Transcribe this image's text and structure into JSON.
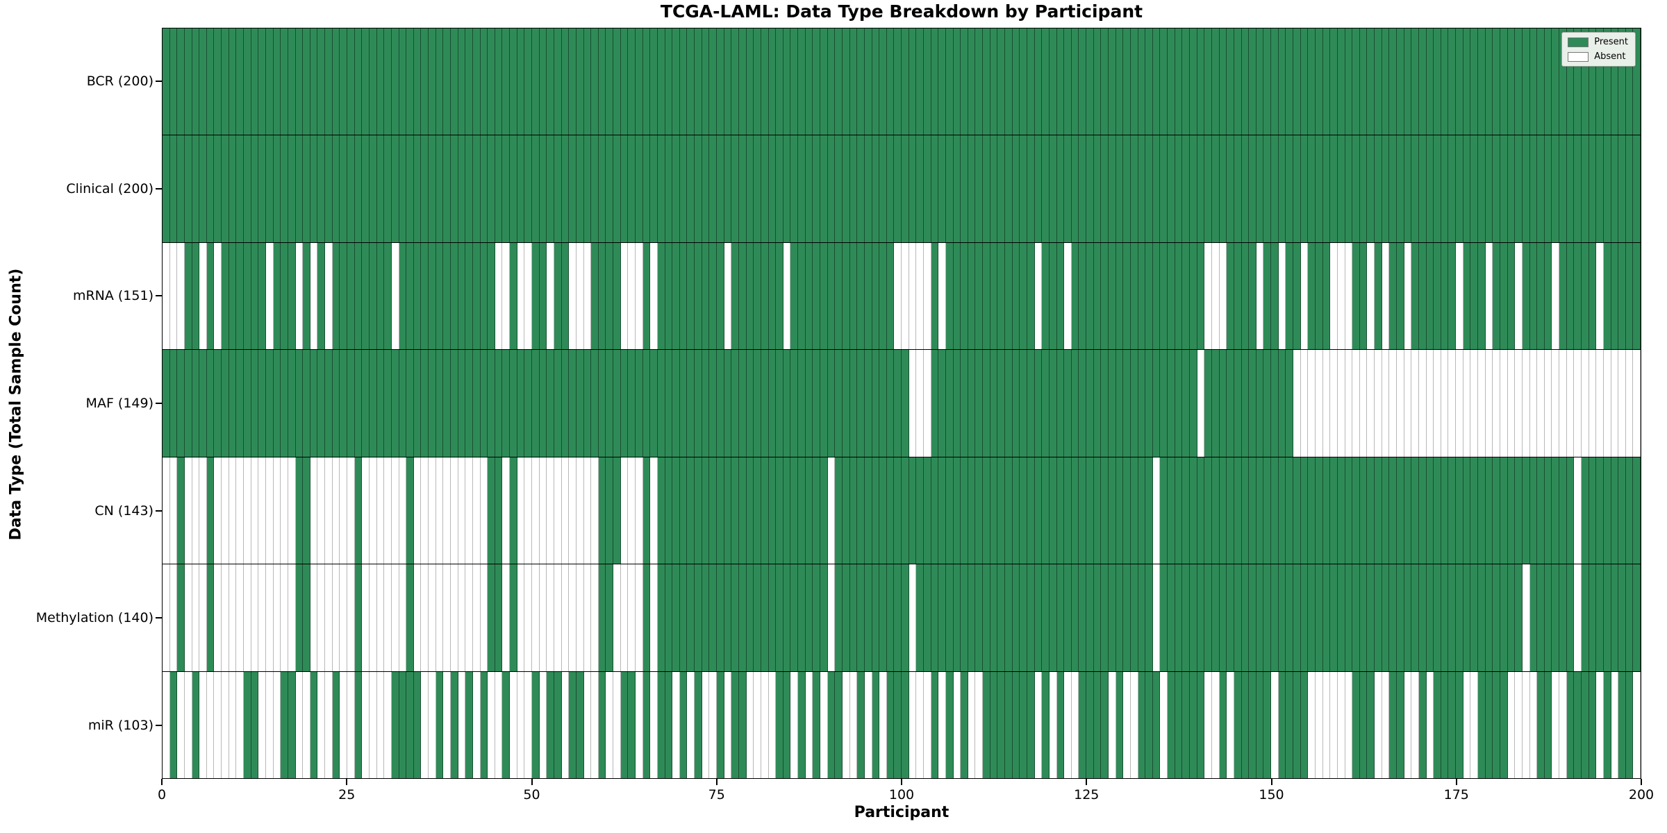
{
  "title": "TCGA-LAML: Data Type Breakdown by Participant",
  "xlabel": "Participant",
  "ylabel": "Data Type (Total Sample Count)",
  "legend": {
    "present_label": "Present",
    "absent_label": "Absent"
  },
  "colors": {
    "present": "#2e8b57",
    "absent": "#ffffff"
  },
  "chart_data": {
    "type": "heatmap",
    "title": "TCGA-LAML: Data Type Breakdown by Participant",
    "xlabel": "Participant",
    "ylabel": "Data Type (Total Sample Count)",
    "x_range": [
      0,
      200
    ],
    "x_ticks": [
      0,
      25,
      50,
      75,
      100,
      125,
      150,
      175,
      200
    ],
    "n_participants": 200,
    "legend_position": "upper right",
    "cell_states": [
      "Present",
      "Absent"
    ],
    "rows": [
      {
        "label": "BCR (200)",
        "data_type": "BCR",
        "present_count": 200,
        "encoding": "absent_indices",
        "indices": []
      },
      {
        "label": "Clinical (200)",
        "data_type": "Clinical",
        "present_count": 200,
        "encoding": "absent_indices",
        "indices": []
      },
      {
        "label": "mRNA (151)",
        "data_type": "mRNA",
        "present_count": 151,
        "encoding": "absent_indices",
        "indices": [
          0,
          1,
          2,
          5,
          7,
          14,
          18,
          20,
          22,
          31,
          45,
          46,
          48,
          49,
          52,
          55,
          56,
          57,
          62,
          63,
          64,
          66,
          76,
          84,
          99,
          100,
          101,
          102,
          103,
          105,
          118,
          122,
          141,
          142,
          143,
          148,
          151,
          154,
          158,
          159,
          160,
          163,
          165,
          168,
          175,
          179,
          183,
          188,
          194
        ]
      },
      {
        "label": "MAF (149)",
        "data_type": "MAF",
        "present_count": 149,
        "encoding": "absent_indices",
        "indices": [
          101,
          102,
          103,
          140,
          153,
          154,
          155,
          156,
          157,
          158,
          159,
          160,
          161,
          162,
          163,
          164,
          165,
          166,
          167,
          168,
          169,
          170,
          171,
          172,
          173,
          174,
          175,
          176,
          177,
          178,
          179,
          180,
          181,
          182,
          183,
          184,
          185,
          186,
          187,
          188,
          189,
          190,
          191,
          192,
          193,
          194,
          195,
          196,
          197,
          198,
          199
        ]
      },
      {
        "label": "CN (143)",
        "data_type": "CN",
        "present_count": 143,
        "encoding": "absent_indices",
        "indices": [
          0,
          1,
          3,
          4,
          5,
          7,
          8,
          9,
          10,
          11,
          12,
          13,
          14,
          15,
          16,
          17,
          20,
          21,
          22,
          23,
          24,
          25,
          27,
          28,
          29,
          30,
          31,
          32,
          34,
          35,
          36,
          37,
          38,
          39,
          40,
          41,
          42,
          43,
          46,
          48,
          49,
          50,
          51,
          52,
          53,
          54,
          55,
          56,
          57,
          58,
          62,
          63,
          64,
          66,
          90,
          134,
          191
        ]
      },
      {
        "label": "Methylation (140)",
        "data_type": "Methylation",
        "present_count": 140,
        "encoding": "absent_indices",
        "indices": [
          0,
          1,
          3,
          4,
          5,
          7,
          8,
          9,
          10,
          11,
          12,
          13,
          14,
          15,
          16,
          17,
          20,
          21,
          22,
          23,
          24,
          25,
          27,
          28,
          29,
          30,
          31,
          32,
          34,
          35,
          36,
          37,
          38,
          39,
          40,
          41,
          42,
          43,
          46,
          48,
          49,
          50,
          51,
          52,
          53,
          54,
          55,
          56,
          57,
          58,
          61,
          62,
          63,
          64,
          66,
          90,
          101,
          134,
          184,
          191
        ]
      },
      {
        "label": "miR (103)",
        "data_type": "miR",
        "present_count": 103,
        "encoding": "present_indices",
        "indices": [
          1,
          4,
          11,
          12,
          16,
          17,
          20,
          23,
          26,
          31,
          32,
          33,
          34,
          37,
          39,
          41,
          43,
          46,
          50,
          52,
          53,
          55,
          56,
          59,
          62,
          63,
          65,
          67,
          68,
          70,
          72,
          75,
          77,
          78,
          83,
          84,
          86,
          88,
          90,
          91,
          94,
          96,
          98,
          99,
          100,
          104,
          106,
          108,
          111,
          112,
          113,
          114,
          115,
          116,
          117,
          119,
          121,
          124,
          125,
          126,
          127,
          129,
          132,
          133,
          134,
          136,
          137,
          138,
          139,
          140,
          143,
          145,
          146,
          147,
          148,
          149,
          151,
          152,
          153,
          154,
          161,
          162,
          163,
          166,
          167,
          170,
          172,
          173,
          174,
          175,
          178,
          179,
          180,
          181,
          186,
          187,
          190,
          191,
          192,
          193,
          195,
          197,
          198
        ]
      }
    ]
  }
}
